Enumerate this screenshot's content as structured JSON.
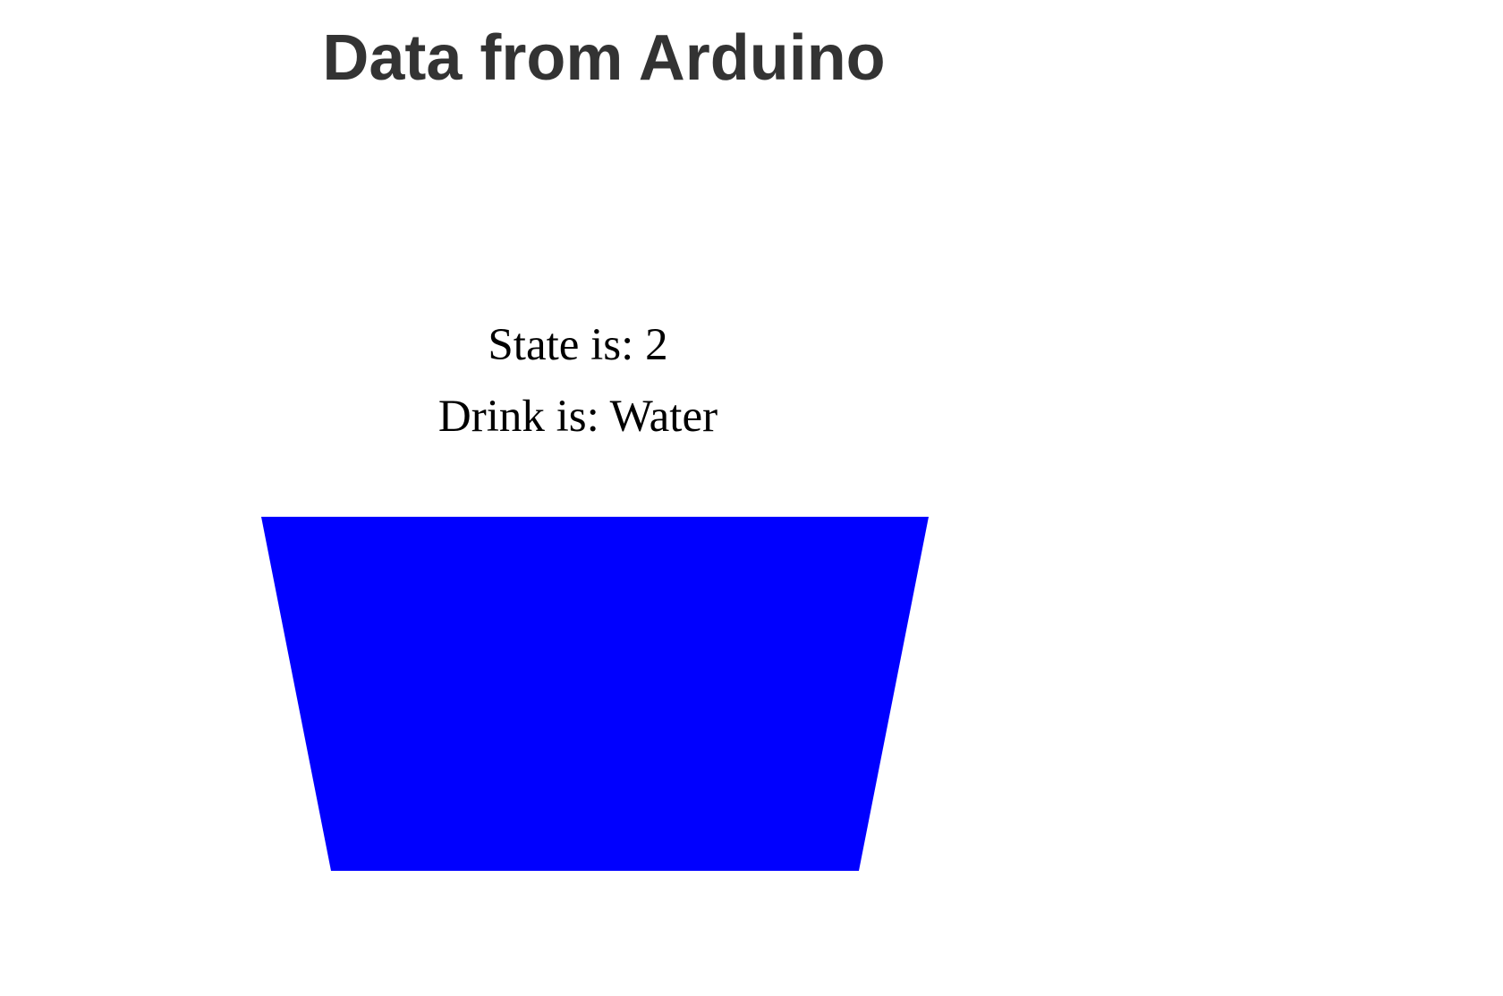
{
  "page": {
    "title": "Data from Arduino"
  },
  "status": {
    "state_text": "State is: 2",
    "drink_text": "Drink is: Water"
  },
  "cup": {
    "fill_color": "#0000ff"
  }
}
